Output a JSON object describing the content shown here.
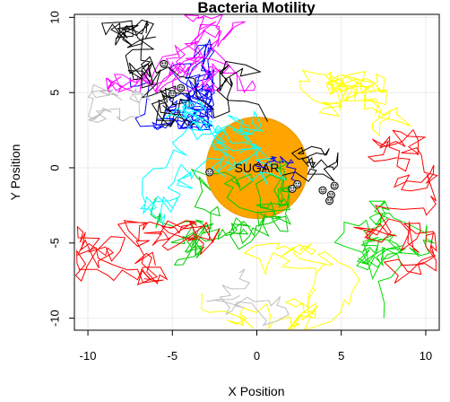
{
  "chart_data": {
    "type": "line",
    "title": "Bacteria Motility",
    "xlabel": "X Position",
    "ylabel": "Y Position",
    "xlim": [
      -10.8,
      10.8
    ],
    "ylim": [
      -10.8,
      10.2
    ],
    "xticks": [
      -10,
      -5,
      0,
      5,
      10
    ],
    "yticks": [
      -10,
      -5,
      0,
      5,
      10
    ],
    "xtick_labels": [
      "-10",
      "-5",
      "0",
      "5",
      "10"
    ],
    "ytick_labels": [
      "-10",
      "-5",
      "0",
      "5",
      "10"
    ],
    "grid": true,
    "sugar": {
      "label": "SUGAR",
      "center": [
        0,
        0
      ],
      "radius": 3,
      "color": "#ffa500"
    },
    "series": [
      {
        "color": "#0000ff",
        "start": [
          -7.5,
          6.0
        ],
        "steps": 160,
        "stepSize": 0.9,
        "bounds": [
          -10.8,
          -2.5,
          2.5,
          10.2
        ],
        "seed": 11
      },
      {
        "color": "#ff00ff",
        "start": [
          -2.0,
          8.5
        ],
        "steps": 140,
        "stepSize": 0.9,
        "bounds": [
          -9.0,
          8.0,
          5.0,
          10.2
        ],
        "seed": 23
      },
      {
        "color": "#000000",
        "start": [
          -4.0,
          4.0
        ],
        "steps": 130,
        "stepSize": 1.0,
        "bounds": [
          -10.8,
          10.8,
          -1.5,
          10.2
        ],
        "seed": 37
      },
      {
        "color": "#00cc00",
        "start": [
          -6.0,
          -2.0
        ],
        "steps": 160,
        "stepSize": 0.9,
        "bounds": [
          -10.5,
          2.0,
          -9.5,
          8.5
        ],
        "seed": 41
      },
      {
        "color": "#00dd00",
        "start": [
          6.0,
          -6.0
        ],
        "steps": 90,
        "stepSize": 0.9,
        "bounds": [
          2.0,
          10.5,
          -10.5,
          3.0
        ],
        "seed": 47
      },
      {
        "color": "#00ffff",
        "start": [
          -1.0,
          1.0
        ],
        "steps": 160,
        "stepSize": 0.85,
        "bounds": [
          -7.0,
          4.5,
          -8.5,
          4.5
        ],
        "seed": 53
      },
      {
        "color": "#ff0000",
        "start": [
          -6.0,
          -6.5
        ],
        "steps": 120,
        "stepSize": 1.0,
        "bounds": [
          -10.8,
          -0.5,
          -10.8,
          -3.5
        ],
        "seed": 59
      },
      {
        "color": "#ff0000",
        "start": [
          8.5,
          -6.5
        ],
        "steps": 110,
        "stepSize": 1.0,
        "bounds": [
          4.0,
          10.8,
          -10.8,
          5.0
        ],
        "seed": 61
      },
      {
        "color": "#ffff00",
        "start": [
          7.0,
          3.5
        ],
        "steps": 110,
        "stepSize": 0.9,
        "bounds": [
          2.5,
          10.8,
          -1.5,
          6.5
        ],
        "seed": 67
      },
      {
        "color": "#ffff00",
        "start": [
          3.5,
          -8.0
        ],
        "steps": 90,
        "stepSize": 0.9,
        "bounds": [
          -3.5,
          7.5,
          -10.8,
          -5.0
        ],
        "seed": 71
      },
      {
        "color": "#bebebe",
        "start": [
          -8.0,
          4.5
        ],
        "steps": 45,
        "stepSize": 0.7,
        "bounds": [
          -10.0,
          -4.5,
          3.0,
          6.5
        ],
        "seed": 73
      },
      {
        "color": "#bebebe",
        "start": [
          -1.0,
          -8.5
        ],
        "steps": 35,
        "stepSize": 0.7,
        "bounds": [
          -3.0,
          3.5,
          -10.5,
          -6.5
        ],
        "seed": 79
      },
      {
        "color": "#000000",
        "start": [
          1.5,
          -0.5
        ],
        "steps": 35,
        "stepSize": 0.8,
        "bounds": [
          -3.0,
          5.0,
          -2.0,
          1.5
        ],
        "seed": 83
      },
      {
        "color": "#0000ff",
        "start": [
          0.5,
          -0.3
        ],
        "steps": 20,
        "stepSize": 0.5,
        "bounds": [
          -1.5,
          2.5,
          -1.5,
          0.8
        ],
        "seed": 89
      }
    ],
    "bacteria_markers": [
      {
        "x": -5.5,
        "y": 6.9
      },
      {
        "x": -4.5,
        "y": 5.3
      },
      {
        "x": -5.0,
        "y": 4.9
      },
      {
        "x": -2.8,
        "y": -0.3
      },
      {
        "x": 4.6,
        "y": -1.2
      },
      {
        "x": 4.4,
        "y": -1.8
      },
      {
        "x": 4.3,
        "y": -2.2
      },
      {
        "x": 3.9,
        "y": -1.5
      },
      {
        "x": 2.1,
        "y": -1.4
      },
      {
        "x": 2.4,
        "y": -1.1
      }
    ]
  }
}
